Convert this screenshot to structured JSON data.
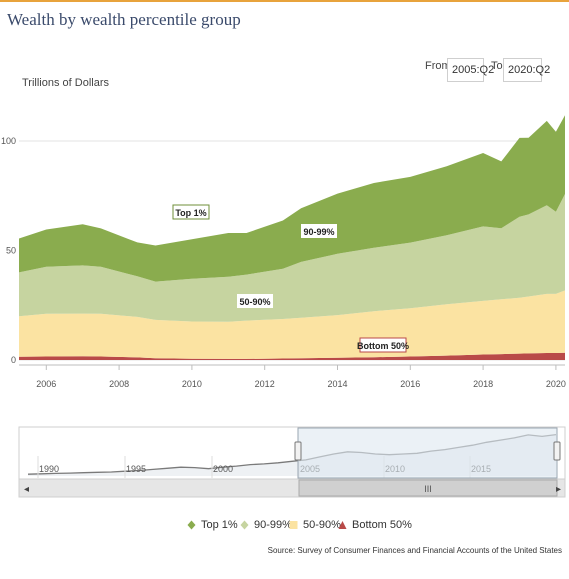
{
  "title": "Wealth by wealth percentile group",
  "from_label": "From",
  "to_label": "To",
  "from_value": "2005:Q2",
  "to_value": "2020:Q2",
  "source": "Source: Survey of Consumer Finances and Financial Accounts of the United States",
  "navigator": {
    "x_ticks": [
      "1990",
      "1995",
      "2000",
      "2005",
      "2010",
      "2015"
    ],
    "scrollbar_grip": "III",
    "left_arrow": "◂",
    "right_arrow": "▸"
  },
  "chart_data": {
    "type": "area",
    "stacked": true,
    "title": "Wealth by wealth percentile group",
    "ylabel": "Trillions of Dollars",
    "xlabel": "",
    "ylim": [
      0,
      120
    ],
    "xlim": [
      2005.25,
      2020.25
    ],
    "y_ticks": [
      "0",
      "50",
      "100"
    ],
    "x_ticks": [
      "2006",
      "2008",
      "2010",
      "2012",
      "2014",
      "2016",
      "2018",
      "2020"
    ],
    "grid": "horizontal",
    "legend_position": "bottom",
    "x": [
      2005.25,
      2006.0,
      2007.0,
      2007.5,
      2008.5,
      2009.0,
      2010.0,
      2011.0,
      2011.5,
      2012.5,
      2013.0,
      2014.0,
      2015.0,
      2016.0,
      2017.0,
      2018.0,
      2018.5,
      2019.0,
      2019.25,
      2019.75,
      2020.0,
      2020.25
    ],
    "series": [
      {
        "name": "Bottom 50%",
        "color": "#b94a48",
        "values": [
          1.5,
          1.6,
          1.7,
          1.6,
          1.2,
          0.8,
          0.6,
          0.5,
          0.5,
          0.7,
          0.8,
          1.0,
          1.3,
          1.6,
          2.0,
          2.5,
          2.7,
          2.9,
          3.0,
          3.2,
          3.2,
          3.3
        ]
      },
      {
        "name": "50-90%",
        "color": "#fbe3a2",
        "values": [
          18.5,
          19.5,
          19.5,
          19.5,
          18.5,
          17.5,
          17.0,
          17.0,
          17.5,
          18.0,
          18.5,
          19.5,
          21.0,
          22.0,
          23.5,
          24.5,
          25.0,
          25.5,
          26.0,
          27.0,
          27.0,
          28.5
        ]
      },
      {
        "name": "90-99%",
        "color": "#c6d4a0",
        "values": [
          20.0,
          21.5,
          22.0,
          21.5,
          18.5,
          17.5,
          19.5,
          20.5,
          21.0,
          23.0,
          25.5,
          28.0,
          29.0,
          30.0,
          31.5,
          34.0,
          32.5,
          37.0,
          37.5,
          40.5,
          37.5,
          44.0
        ]
      },
      {
        "name": "Top 1%",
        "color": "#8aac4e",
        "values": [
          15.5,
          17.0,
          18.8,
          17.5,
          15.5,
          16.5,
          18.0,
          20.0,
          19.0,
          22.0,
          24.5,
          27.5,
          29.5,
          30.0,
          31.5,
          33.5,
          30.5,
          36.0,
          35.0,
          38.5,
          36.5,
          36.0
        ]
      }
    ],
    "annotations": [
      "Top 1%",
      "90-99%",
      "50-90%",
      "Bottom 50%"
    ],
    "navigator_series": [
      5,
      6,
      7,
      8,
      9,
      10,
      11,
      13,
      15,
      18,
      21,
      24,
      23,
      20,
      24,
      27,
      31,
      33,
      36,
      40,
      44,
      52,
      60,
      66,
      64,
      60,
      58,
      60,
      62,
      68,
      72,
      78,
      84,
      92,
      98,
      104,
      112,
      108,
      113
    ]
  }
}
